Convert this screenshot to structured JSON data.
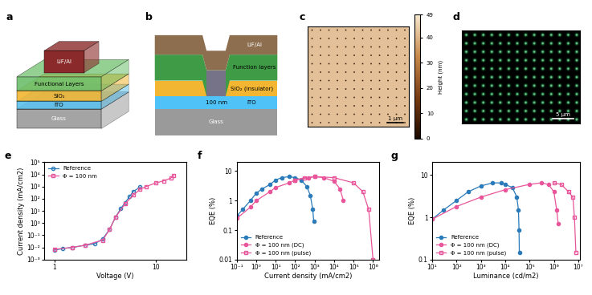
{
  "panels": [
    {
      "label": "a",
      "layers": [
        "Glass",
        "ITO",
        "SiO₂",
        "Functional Layers"
      ],
      "electrode": "LiF/Al"
    },
    {
      "label": "b",
      "electrode": "LiF/Al",
      "function_layer": "Function layers",
      "insulator": "SiO₂ (insulator)",
      "anode": "ITO",
      "substrate": "Glass",
      "aperture": "100 nm"
    },
    {
      "label": "c",
      "colorbar": {
        "label": "Height (nm)",
        "range": [
          0,
          49
        ],
        "ticks": [
          0,
          10,
          20,
          30,
          40,
          49
        ]
      },
      "scale_bar": "1 μm"
    },
    {
      "label": "d",
      "scale_bar": "5 μm"
    }
  ],
  "chart_data": [
    {
      "type": "line",
      "title": "e",
      "x_label": "Voltage (V)",
      "y_label": "Current density (mA/cm2)",
      "log": true,
      "grid": false,
      "legend": "upper left",
      "xlim": [
        0.8,
        20
      ],
      "xticks": [
        1,
        10
      ],
      "ylim": [
        0.001,
        100000
      ],
      "yticks": [
        {
          "value": 0.001,
          "label": "10⁻³"
        },
        {
          "value": 0.01,
          "label": "10⁻²"
        },
        {
          "value": 0.1,
          "label": "10⁻¹"
        },
        {
          "value": 1,
          "label": "10⁰"
        },
        {
          "value": 10,
          "label": "10¹"
        },
        {
          "value": 100,
          "label": "10²"
        },
        {
          "value": 1000,
          "label": "10³"
        },
        {
          "value": 10000,
          "label": "10⁴"
        },
        {
          "value": 100000,
          "label": "10⁵"
        }
      ],
      "series": [
        {
          "name": "Reference",
          "color": "#2b7bba",
          "marker": "open_circle",
          "line_style": "solid",
          "x": [
            1,
            1.2,
            1.5,
            2,
            2.5,
            3,
            3.5,
            4,
            4.5,
            5,
            5.5,
            6,
            7
          ],
          "values": [
            0.006,
            0.008,
            0.01,
            0.015,
            0.02,
            0.05,
            0.3,
            3,
            15,
            50,
            150,
            400,
            900
          ]
        },
        {
          "name": "Φ = 100 nm",
          "color": "#e8559a",
          "marker": "open_square",
          "line_style": "solid",
          "x": [
            1,
            1.5,
            2,
            3,
            3.5,
            4,
            5,
            6,
            7,
            8,
            10,
            12,
            14,
            15
          ],
          "values": [
            0.007,
            0.01,
            0.015,
            0.04,
            0.3,
            3,
            40,
            200,
            600,
            1000,
            2000,
            3000,
            5000,
            8000
          ]
        }
      ]
    },
    {
      "type": "line",
      "title": "f",
      "x_label": "Current density (mA/cm2)",
      "y_label": "EQE (%)",
      "log": true,
      "grid": false,
      "legend": "lower left",
      "xlim": [
        0.1,
        2000000
      ],
      "xticks": [
        {
          "value": 0.1,
          "label": "10⁻¹"
        },
        {
          "value": 1,
          "label": "10⁰"
        },
        {
          "value": 10,
          "label": "10¹"
        },
        {
          "value": 100,
          "label": "10²"
        },
        {
          "value": 1000,
          "label": "10³"
        },
        {
          "value": 10000,
          "label": "10⁴"
        },
        {
          "value": 100000,
          "label": "10⁵"
        },
        {
          "value": 1000000,
          "label": "10⁶"
        }
      ],
      "ylim": [
        0.01,
        20
      ],
      "yticks": [
        0.01,
        0.1,
        1,
        10
      ],
      "series": [
        {
          "name": "Reference",
          "color": "#2b7bba",
          "marker": "circle",
          "line_style": "solid",
          "x": [
            0.1,
            0.2,
            0.5,
            1,
            2,
            5,
            10,
            20,
            50,
            100,
            200,
            400,
            600,
            800,
            900
          ],
          "values": [
            0.3,
            0.5,
            1.0,
            1.8,
            2.5,
            3.5,
            5,
            6,
            6.5,
            6,
            5,
            3,
            1.5,
            0.5,
            0.2
          ]
        },
        {
          "name": "Φ = 100 nm (DC)",
          "color": "#e8559a",
          "marker": "circle",
          "line_style": "solid",
          "x": [
            0.1,
            0.5,
            1,
            5,
            10,
            50,
            100,
            500,
            1000,
            3000,
            10000,
            20000,
            30000
          ],
          "values": [
            0.25,
            0.6,
            1,
            2,
            2.8,
            4,
            5,
            6,
            6.5,
            6,
            4.5,
            2.5,
            1.0
          ]
        },
        {
          "name": "Φ = 100 nm (pulse)",
          "color": "#e8559a",
          "marker": "open_square",
          "line_style": "solid",
          "x": [
            100,
            300,
            1000,
            10000,
            100000,
            300000,
            600000,
            1000000
          ],
          "values": [
            5,
            6,
            6.5,
            6,
            4,
            2,
            0.5,
            0.01
          ]
        }
      ]
    },
    {
      "type": "line",
      "title": "g",
      "x_label": "Luminance (cd/m2)",
      "y_label": "EQE (%)",
      "log": true,
      "grid": false,
      "legend": "lower left",
      "xlim": [
        10,
        12000000
      ],
      "xticks": [
        {
          "value": 10,
          "label": "10¹"
        },
        {
          "value": 100,
          "label": "10²"
        },
        {
          "value": 1000,
          "label": "10³"
        },
        {
          "value": 10000,
          "label": "10⁴"
        },
        {
          "value": 100000,
          "label": "10⁵"
        },
        {
          "value": 1000000,
          "label": "10⁶"
        },
        {
          "value": 10000000,
          "label": "10⁷"
        }
      ],
      "ylim": [
        0.1,
        20
      ],
      "yticks": [
        0.1,
        1,
        10
      ],
      "series": [
        {
          "name": "Reference",
          "color": "#2b7bba",
          "marker": "circle",
          "line_style": "solid",
          "x": [
            10,
            30,
            100,
            300,
            1000,
            3000,
            7000,
            10000,
            20000,
            30000,
            35000,
            37000,
            38000
          ],
          "values": [
            0.9,
            1.5,
            2.5,
            4,
            5.5,
            6.5,
            6.5,
            6,
            5,
            3,
            1.5,
            0.5,
            0.15
          ]
        },
        {
          "name": "Φ = 100 nm (DC)",
          "color": "#e8559a",
          "marker": "circle",
          "line_style": "solid",
          "x": [
            10,
            100,
            1000,
            10000,
            100000,
            300000,
            600000,
            1000000,
            1300000,
            1500000
          ],
          "values": [
            0.9,
            1.8,
            3,
            4.5,
            6,
            6.5,
            6,
            4,
            1.5,
            0.7
          ]
        },
        {
          "name": "Φ = 100 nm (pulse)",
          "color": "#e8559a",
          "marker": "open_square",
          "line_style": "solid",
          "x": [
            1000000,
            2000000,
            4000000,
            6000000,
            7000000,
            8000000
          ],
          "values": [
            6.5,
            6,
            4,
            3,
            1,
            0.15
          ]
        }
      ]
    }
  ]
}
